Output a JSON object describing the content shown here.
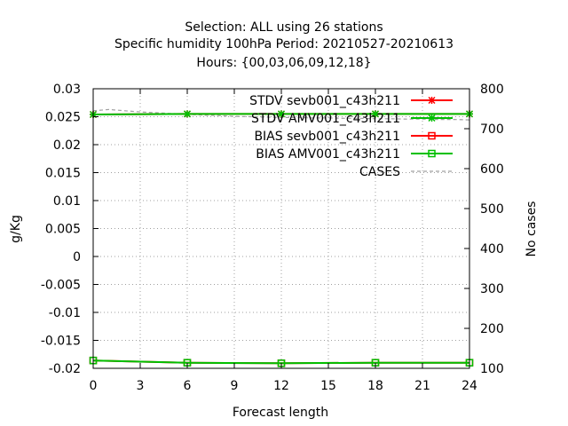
{
  "chart_data": {
    "type": "line",
    "title_lines": [
      "Selection: ALL using    26 stations",
      "Specific humidity 100hPa   Period: 20210527-20210613",
      "Hours: {00,03,06,09,12,18}"
    ],
    "xlabel": "Forecast length",
    "ylabel": "g/Kg",
    "y2label": "No cases",
    "xlim": [
      0,
      24
    ],
    "ylim": [
      -0.02,
      0.03
    ],
    "y2lim": [
      100,
      800
    ],
    "xticks": [
      0,
      3,
      6,
      9,
      12,
      15,
      18,
      21,
      24
    ],
    "yticks": [
      0.03,
      0.025,
      0.02,
      0.015,
      0.01,
      0.005,
      0,
      -0.005,
      -0.01,
      -0.015,
      -0.02
    ],
    "ytick_labels": [
      "0.03",
      "0.025",
      "0.02",
      "0.015",
      "0.01",
      "0.005",
      "0",
      "-0.005",
      "-0.01",
      "-0.015",
      "-0.02"
    ],
    "y2ticks": [
      800,
      700,
      600,
      500,
      400,
      300,
      200,
      100
    ],
    "grid": true,
    "legend_position": "top-right",
    "series": [
      {
        "name": "STDV sevb001_c43h211",
        "axis": "y1",
        "color": "#ff0000",
        "marker": "star",
        "x": [
          0,
          6,
          12,
          18,
          24
        ],
        "values": [
          0.0254,
          0.0255,
          0.0255,
          0.0255,
          0.0255
        ]
      },
      {
        "name": "STDV AMV001_c43h211",
        "axis": "y1",
        "color": "#00c000",
        "marker": "star",
        "x": [
          0,
          6,
          12,
          18,
          24
        ],
        "values": [
          0.0254,
          0.0255,
          0.0255,
          0.0255,
          0.0255
        ]
      },
      {
        "name": "BIAS sevb001_c43h211",
        "axis": "y1",
        "color": "#ff0000",
        "marker": "square",
        "x": [
          0,
          6,
          12,
          18,
          24
        ],
        "values": [
          -0.0186,
          -0.019,
          -0.0191,
          -0.019,
          -0.019
        ]
      },
      {
        "name": "BIAS AMV001_c43h211",
        "axis": "y1",
        "color": "#00c000",
        "marker": "square",
        "x": [
          0,
          6,
          12,
          18,
          24
        ],
        "values": [
          -0.0186,
          -0.019,
          -0.0191,
          -0.019,
          -0.019
        ]
      },
      {
        "name": "CASES",
        "axis": "y2",
        "color": "#a0a0a0",
        "marker": "none",
        "dashed": true,
        "x": [
          0,
          1,
          2,
          3,
          4,
          5,
          6,
          7,
          8,
          9,
          10,
          11,
          12,
          13,
          14,
          15,
          16,
          17,
          18,
          19,
          20,
          21,
          22,
          23,
          24
        ],
        "values": [
          745,
          748,
          745,
          742,
          740,
          738,
          736,
          734,
          733,
          731,
          730,
          729,
          728,
          728,
          727,
          727,
          726,
          726,
          725,
          725,
          724,
          724,
          723,
          723,
          722
        ]
      }
    ]
  }
}
